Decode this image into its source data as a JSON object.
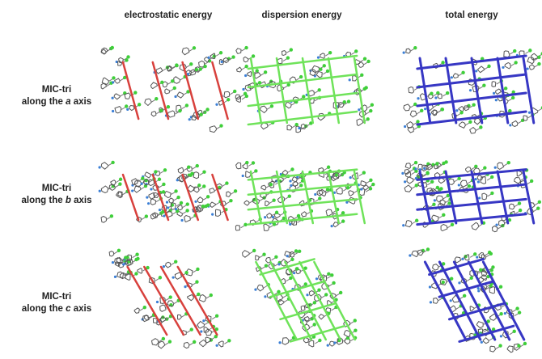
{
  "header": {
    "columns": [
      "electrostatic energy",
      "dispersion energy",
      "total energy"
    ]
  },
  "rows": [
    {
      "name": "MIC-tri",
      "prefix": "along the",
      "axis": "a",
      "suffix": "axis"
    },
    {
      "name": "MIC-tri",
      "prefix": "along the",
      "axis": "b",
      "suffix": "axis"
    },
    {
      "name": "MIC-tri",
      "prefix": "along the",
      "axis": "c",
      "suffix": "axis"
    }
  ]
}
